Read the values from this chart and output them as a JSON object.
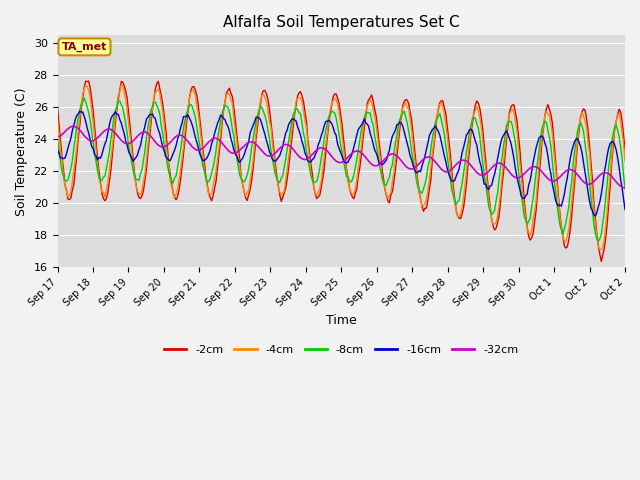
{
  "title": "Alfalfa Soil Temperatures Set C",
  "ylabel": "Soil Temperature (C)",
  "xlabel": "Time",
  "ylim": [
    16,
    30.5
  ],
  "fig_bg": "#f2f2f2",
  "plot_bg": "#dcdcdc",
  "series": {
    "-2cm": {
      "color": "#dd0000",
      "lw": 1.0
    },
    "-4cm": {
      "color": "#ff8800",
      "lw": 1.0
    },
    "-8cm": {
      "color": "#00cc00",
      "lw": 1.0
    },
    "-16cm": {
      "color": "#0000cc",
      "lw": 1.0
    },
    "-32cm": {
      "color": "#cc00cc",
      "lw": 1.2
    }
  },
  "annotation_text": "TA_met",
  "annotation_color": "#880000",
  "annotation_bg": "#ffff99",
  "annotation_border": "#cc8800",
  "grid_color": "#ffffff",
  "tick_fontsize": 7,
  "label_fontsize": 9,
  "title_fontsize": 11
}
